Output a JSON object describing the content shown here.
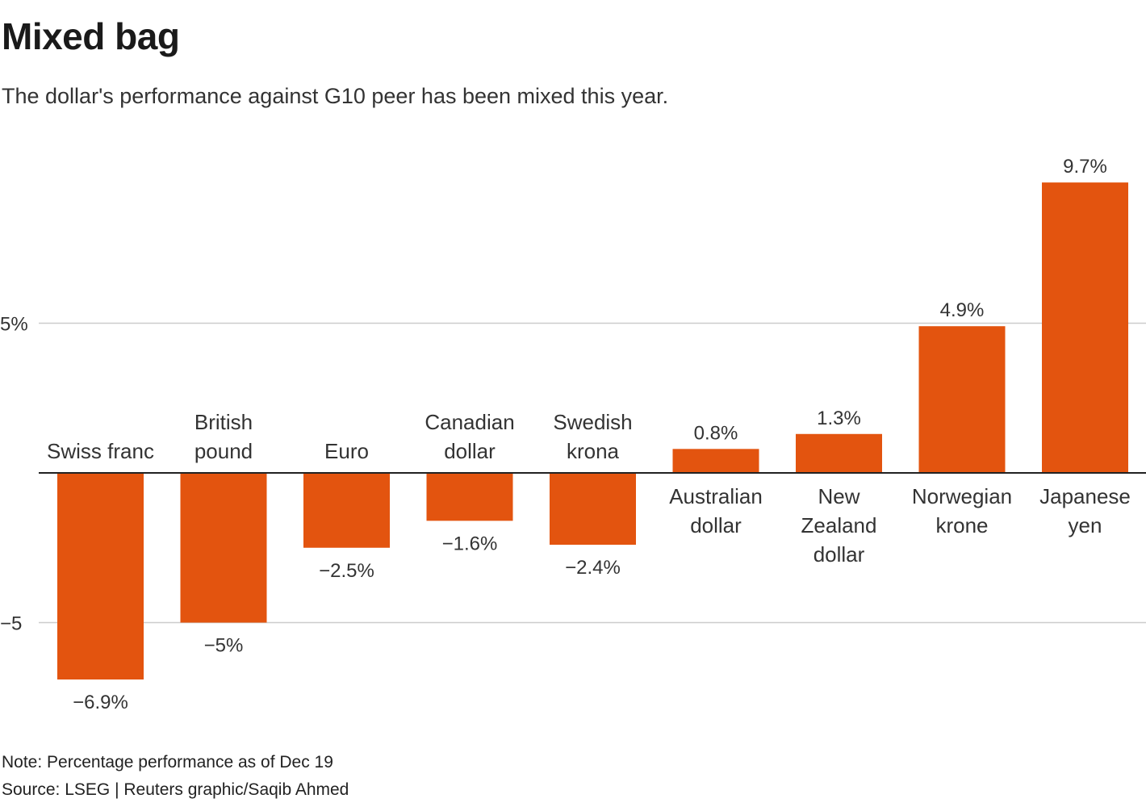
{
  "title": "Mixed bag",
  "subtitle": "The dollar's performance against G10 peer has been mixed this year.",
  "note": "Note: Percentage performance as of Dec 19",
  "source": "Source: LSEG | Reuters graphic/Saqib Ahmed",
  "colors": {
    "bar": "#e3540f",
    "grid": "#cccccc",
    "axis": "#222222",
    "text": "#333333"
  },
  "chart_data": {
    "type": "bar",
    "title": "Mixed bag",
    "categories": [
      [
        "Swiss franc"
      ],
      [
        "British",
        "pound"
      ],
      [
        "Euro"
      ],
      [
        "Canadian",
        "dollar"
      ],
      [
        "Swedish",
        "krona"
      ],
      [
        "Australian",
        "dollar"
      ],
      [
        "New",
        "Zealand",
        "dollar"
      ],
      [
        "Norwegian",
        "krone"
      ],
      [
        "Japanese",
        "yen"
      ]
    ],
    "values": [
      -6.9,
      -5,
      -2.5,
      -1.6,
      -2.4,
      0.8,
      1.3,
      4.9,
      9.7
    ],
    "value_labels": [
      "−6.9%",
      "−5%",
      "−2.5%",
      "−1.6%",
      "−2.4%",
      "0.8%",
      "1.3%",
      "4.9%",
      "9.7%"
    ],
    "yticks": [
      {
        "value": 5,
        "label": "5%"
      },
      {
        "value": -5,
        "label": "−5"
      }
    ],
    "xlabel": "",
    "ylabel": "",
    "grid": true,
    "legend": "none"
  }
}
